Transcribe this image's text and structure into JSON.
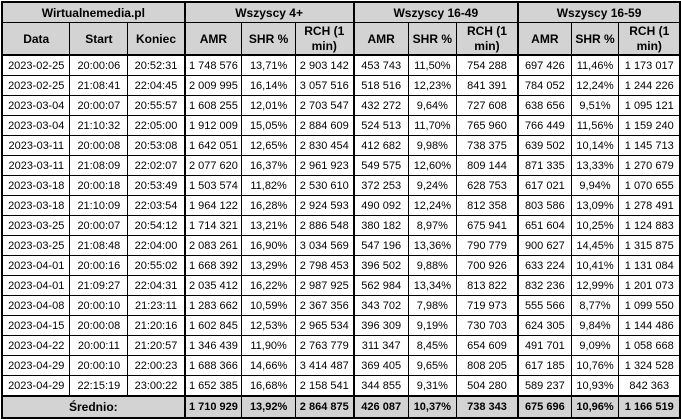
{
  "colors": {
    "header_bg": "#d3d3d3",
    "row_bg": "#ffffff",
    "border": "#000000",
    "text": "#000000"
  },
  "chart_data": {
    "type": "table",
    "title": "Wirtualnemedia.pl",
    "column_groups": [
      "Wirtualnemedia.pl",
      "Wszyscy 4+",
      "Wszyscy 16-49",
      "Wszyscy 16-59"
    ],
    "columns": [
      "Data",
      "Start",
      "Koniec",
      "AMR",
      "SHR %",
      "RCH (1 min)",
      "AMR",
      "SHR %",
      "RCH (1 min)",
      "AMR",
      "SHR %",
      "RCH (1 min)"
    ],
    "rows": [
      [
        "2023-02-25",
        "20:00:06",
        "20:52:31",
        "1 748 576",
        "13,71%",
        "2 903 142",
        "453 743",
        "11,50%",
        "754 288",
        "697 426",
        "11,46%",
        "1 173 017"
      ],
      [
        "2023-02-25",
        "21:08:41",
        "22:04:45",
        "2 009 995",
        "16,14%",
        "3 057 516",
        "518 516",
        "12,23%",
        "841 391",
        "784 052",
        "12,24%",
        "1 244 226"
      ],
      [
        "2023-03-04",
        "20:00:07",
        "20:55:57",
        "1 608 255",
        "12,01%",
        "2 703 547",
        "432 272",
        "9,64%",
        "727 608",
        "638 656",
        "9,51%",
        "1 095 121"
      ],
      [
        "2023-03-04",
        "21:10:32",
        "22:05:00",
        "1 912 009",
        "15,05%",
        "2 884 609",
        "524 513",
        "11,70%",
        "765 960",
        "766 449",
        "11,56%",
        "1 159 240"
      ],
      [
        "2023-03-11",
        "20:00:08",
        "20:53:08",
        "1 642 051",
        "12,65%",
        "2 830 454",
        "412 682",
        "9,98%",
        "738 375",
        "639 502",
        "10,14%",
        "1 145 713"
      ],
      [
        "2023-03-11",
        "21:08:09",
        "22:02:07",
        "2 077 620",
        "16,37%",
        "2 961 923",
        "549 575",
        "12,60%",
        "809 144",
        "871 335",
        "13,33%",
        "1 270 679"
      ],
      [
        "2023-03-18",
        "20:00:18",
        "20:53:49",
        "1 503 574",
        "11,82%",
        "2 530 610",
        "372 253",
        "9,24%",
        "628 753",
        "617 021",
        "9,94%",
        "1 070 655"
      ],
      [
        "2023-03-18",
        "21:10:09",
        "22:03:54",
        "1 964 122",
        "16,28%",
        "2 924 593",
        "490 092",
        "12,24%",
        "812 358",
        "803 586",
        "13,09%",
        "1 278 491"
      ],
      [
        "2023-03-25",
        "20:00:07",
        "20:54:12",
        "1 714 321",
        "13,21%",
        "2 886 548",
        "380 182",
        "8,97%",
        "675 941",
        "651 604",
        "10,25%",
        "1 124 883"
      ],
      [
        "2023-03-25",
        "21:08:48",
        "22:04:00",
        "2 083 261",
        "16,90%",
        "3 034 569",
        "547 196",
        "13,36%",
        "790 779",
        "900 627",
        "14,45%",
        "1 315 875"
      ],
      [
        "2023-04-01",
        "20:00:16",
        "20:55:02",
        "1 668 392",
        "13,29%",
        "2 798 453",
        "396 502",
        "9,88%",
        "700 926",
        "633 224",
        "10,41%",
        "1 131 084"
      ],
      [
        "2023-04-01",
        "21:09:27",
        "22:04:31",
        "2 035 412",
        "16,22%",
        "2 987 925",
        "562 984",
        "13,34%",
        "813 822",
        "832 236",
        "12,99%",
        "1 201 073"
      ],
      [
        "2023-04-08",
        "20:00:10",
        "21:23:11",
        "1 283 662",
        "10,59%",
        "2 367 356",
        "343 702",
        "7,98%",
        "719 973",
        "555 566",
        "8,77%",
        "1 099 550"
      ],
      [
        "2023-04-15",
        "20:00:08",
        "21:20:16",
        "1 602 845",
        "12,53%",
        "2 965 534",
        "396 309",
        "9,19%",
        "730 703",
        "624 305",
        "9,84%",
        "1 144 486"
      ],
      [
        "2023-04-22",
        "20:00:11",
        "21:20:57",
        "1 346 439",
        "11,90%",
        "2 763 779",
        "311 347",
        "8,45%",
        "654 609",
        "491 701",
        "9,09%",
        "1 058 668"
      ],
      [
        "2023-04-29",
        "20:00:10",
        "22:00:23",
        "1 688 366",
        "14,66%",
        "3 414 487",
        "369 405",
        "9,65%",
        "808 205",
        "617 185",
        "10,76%",
        "1 324 528"
      ],
      [
        "2023-04-29",
        "22:15:19",
        "23:00:22",
        "1 652 385",
        "16,68%",
        "2 158 541",
        "344 855",
        "9,31%",
        "504 280",
        "589 237",
        "10,93%",
        "842 363"
      ]
    ],
    "average_label": "Średnio:",
    "average_row": [
      "1 710 929",
      "13,92%",
      "2 864 875",
      "426 087",
      "10,37%",
      "738 343",
      "675 696",
      "10,96%",
      "1 166 519"
    ]
  }
}
